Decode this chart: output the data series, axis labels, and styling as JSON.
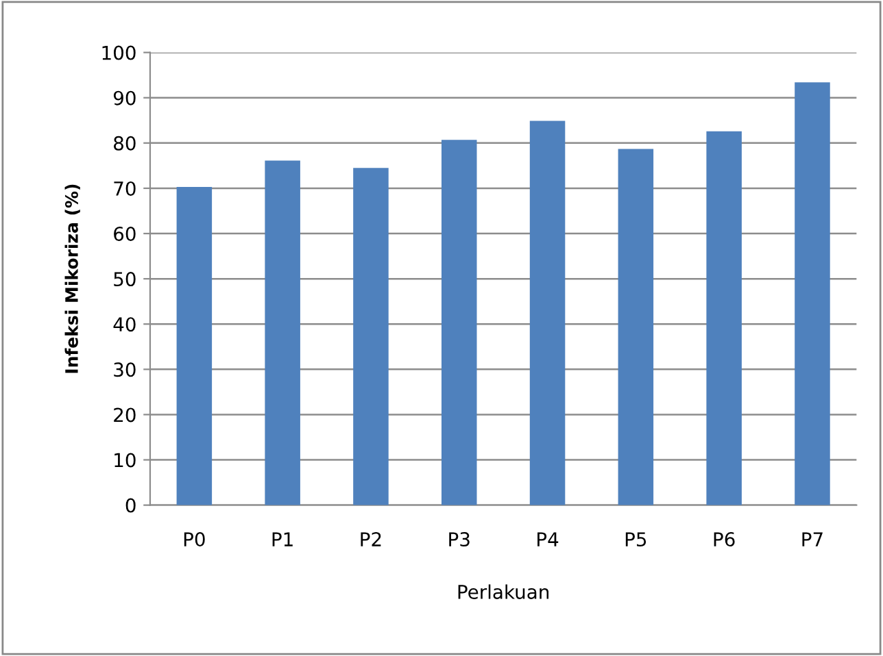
{
  "chart_data": {
    "type": "bar",
    "xlabel": "Perlakuan",
    "ylabel": "Infeksi Mikoriza (%)",
    "categories": [
      "P0",
      "P1",
      "P2",
      "P3",
      "P4",
      "P5",
      "P6",
      "P7"
    ],
    "values": [
      70.3,
      76.1,
      74.5,
      80.7,
      84.9,
      78.7,
      82.6,
      93.4
    ],
    "color": "#4f81bd",
    "ylim": [
      0,
      100
    ],
    "yticks": [
      0,
      10,
      20,
      30,
      40,
      50,
      60,
      70,
      80,
      90,
      100
    ],
    "grid": "y",
    "legend": false
  }
}
